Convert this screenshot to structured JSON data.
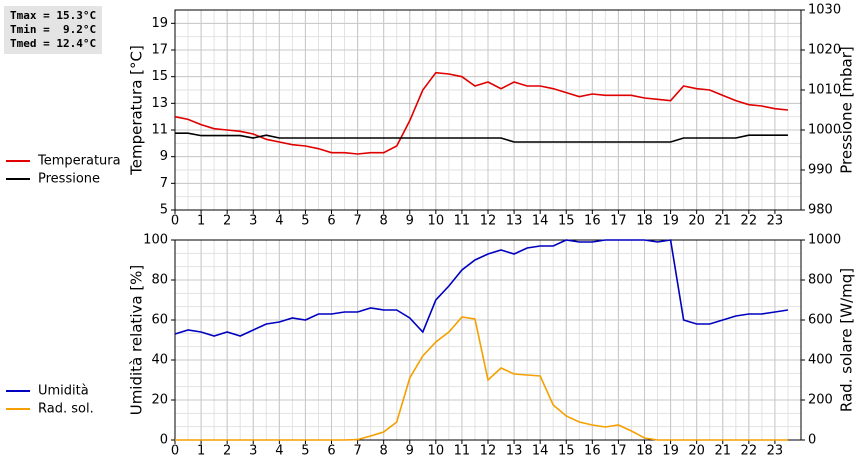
{
  "info_box": [
    "Tmax = 15.3°C",
    "Tmin =  9.2°C",
    "Tmed = 12.4°C"
  ],
  "chart_data": [
    {
      "type": "line",
      "ylabel": "Temperatura [°C]",
      "y2label": "Pressione [mbar]",
      "x": [
        0,
        0.5,
        1,
        1.5,
        2,
        2.5,
        3,
        3.5,
        4,
        4.5,
        5,
        5.5,
        6,
        6.5,
        7,
        7.5,
        8,
        8.5,
        9,
        9.5,
        10,
        10.5,
        11,
        11.5,
        12,
        12.5,
        13,
        13.5,
        14,
        14.5,
        15,
        15.5,
        16,
        16.5,
        17,
        17.5,
        18,
        18.5,
        19,
        19.5,
        20,
        20.5,
        21,
        21.5,
        22,
        22.5,
        23,
        23.5
      ],
      "xlim": [
        0,
        24
      ],
      "xticks": [
        0,
        1,
        2,
        3,
        4,
        5,
        6,
        7,
        8,
        9,
        10,
        11,
        12,
        13,
        14,
        15,
        16,
        17,
        18,
        19,
        20,
        21,
        22,
        23
      ],
      "ylim": [
        5,
        20
      ],
      "yticks": [
        5,
        7,
        9,
        11,
        13,
        15,
        17,
        19
      ],
      "y2lim": [
        980,
        1030
      ],
      "y2ticks": [
        980,
        990,
        1000,
        1010,
        1020,
        1030
      ],
      "grid": true,
      "legend": "left",
      "series": [
        {
          "name": "Temperatura",
          "color": "#e00000",
          "values": [
            12.0,
            11.8,
            11.4,
            11.1,
            11.0,
            10.9,
            10.7,
            10.3,
            10.1,
            9.9,
            9.8,
            9.6,
            9.3,
            9.3,
            9.2,
            9.3,
            9.3,
            9.8,
            11.7,
            14.0,
            15.3,
            15.2,
            15.0,
            14.3,
            14.6,
            14.1,
            14.6,
            14.3,
            14.3,
            14.1,
            13.8,
            13.5,
            13.7,
            13.6,
            13.6,
            13.6,
            13.4,
            13.3,
            13.2,
            14.3,
            14.1,
            14.0,
            13.6,
            13.2,
            12.9,
            12.8,
            12.6,
            12.5
          ]
        },
        {
          "name": "Pressione",
          "color": "#000000",
          "axis": "y2",
          "values": [
            999.2,
            999.2,
            998.6,
            998.6,
            998.6,
            998.6,
            998.0,
            998.7,
            998.0,
            998.0,
            998.0,
            998.0,
            998.0,
            998.0,
            998.0,
            998.0,
            998.0,
            998.0,
            998.0,
            998.0,
            998.0,
            998.0,
            998.0,
            998.0,
            998.0,
            998.0,
            997.0,
            997.0,
            997.0,
            997.0,
            997.0,
            997.0,
            997.0,
            997.0,
            997.0,
            997.0,
            997.0,
            997.0,
            997.0,
            998.0,
            998.0,
            998.0,
            998.0,
            998.0,
            998.7,
            998.7,
            998.7,
            998.7
          ]
        }
      ]
    },
    {
      "type": "line",
      "ylabel": "Umidità relativa [%]",
      "y2label": "Rad. solare [W/mq]",
      "x": [
        0,
        0.5,
        1,
        1.5,
        2,
        2.5,
        3,
        3.5,
        4,
        4.5,
        5,
        5.5,
        6,
        6.5,
        7,
        7.5,
        8,
        8.5,
        9,
        9.5,
        10,
        10.5,
        11,
        11.5,
        12,
        12.5,
        13,
        13.5,
        14,
        14.5,
        15,
        15.5,
        16,
        16.5,
        17,
        17.5,
        18,
        18.5,
        19,
        19.5,
        20,
        20.5,
        21,
        21.5,
        22,
        22.5,
        23,
        23.5
      ],
      "xlim": [
        0,
        24
      ],
      "xticks": [
        0,
        1,
        2,
        3,
        4,
        5,
        6,
        7,
        8,
        9,
        10,
        11,
        12,
        13,
        14,
        15,
        16,
        17,
        18,
        19,
        20,
        21,
        22,
        23
      ],
      "ylim": [
        0,
        100
      ],
      "yticks": [
        0,
        20,
        40,
        60,
        80,
        100
      ],
      "y2lim": [
        0,
        1000
      ],
      "y2ticks": [
        0,
        200,
        400,
        600,
        800,
        1000
      ],
      "grid": true,
      "legend": "left",
      "series": [
        {
          "name": "Umidità",
          "color": "#0000c0",
          "values": [
            53,
            55,
            54,
            52,
            54,
            52,
            55,
            58,
            59,
            61,
            60,
            63,
            63,
            64,
            64,
            66,
            65,
            65,
            61,
            54,
            70,
            77,
            85,
            90,
            93,
            95,
            93,
            96,
            97,
            97,
            100,
            99,
            99,
            100,
            100,
            100,
            100,
            99,
            100,
            60,
            58,
            58,
            60,
            62,
            63,
            63,
            64,
            65
          ]
        },
        {
          "name": "Rad. sol.",
          "color": "#f5a000",
          "axis": "y2",
          "values": [
            0,
            0,
            0,
            0,
            0,
            0,
            0,
            0,
            0,
            0,
            0,
            0,
            0,
            0,
            2,
            20,
            40,
            90,
            310,
            420,
            490,
            540,
            615,
            605,
            300,
            360,
            330,
            325,
            320,
            175,
            120,
            90,
            75,
            65,
            75,
            45,
            10,
            0,
            0,
            0,
            0,
            0,
            0,
            0,
            0,
            0,
            0,
            0
          ]
        }
      ]
    }
  ]
}
